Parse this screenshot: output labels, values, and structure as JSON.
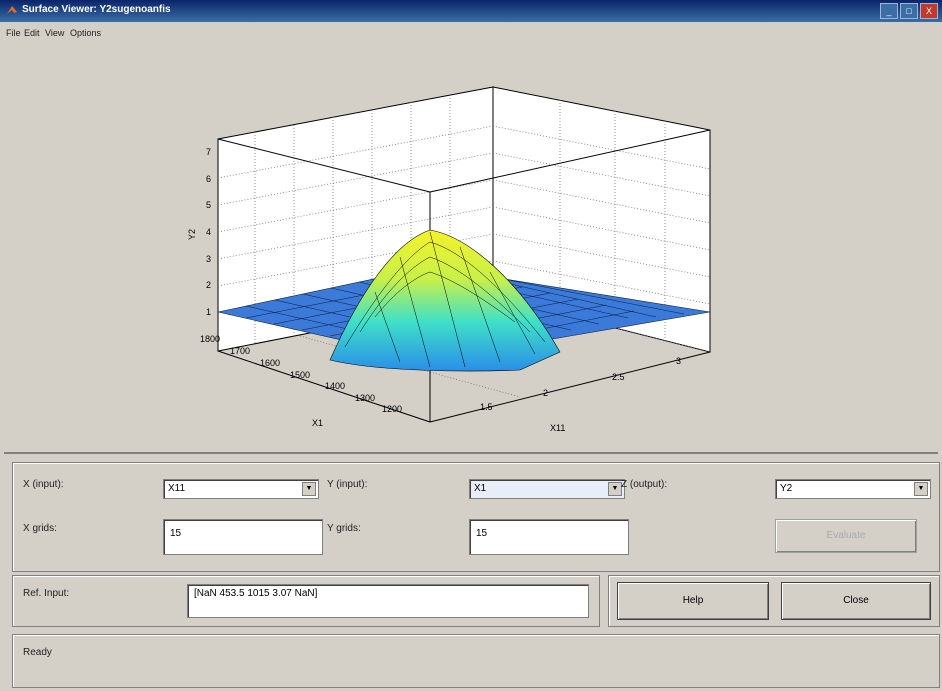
{
  "window": {
    "title": "Surface Viewer: Y2sugenoanfis",
    "controls": [
      "_",
      "□",
      "X"
    ]
  },
  "menu": [
    "File",
    "Edit",
    "View",
    "Options"
  ],
  "plot": {
    "zlabel": "Y2",
    "xlabel": "X1",
    "ylabel": "X11",
    "z_ticks": [
      "1",
      "2",
      "3",
      "4",
      "5",
      "6",
      "7"
    ],
    "x1_ticks": [
      "1200",
      "1300",
      "1400",
      "1500",
      "1600",
      "1700",
      "1800"
    ],
    "x11_ticks": [
      "1.5",
      "2",
      "2.5",
      "3"
    ]
  },
  "controls": {
    "x_input_label": "X (input):",
    "x_input_value": "X11",
    "y_input_label": "Y (input):",
    "y_input_value": "X1",
    "z_output_label": "Z (output):",
    "z_output_value": "Y2",
    "x_grids_label": "X grids:",
    "x_grids_value": "15",
    "y_grids_label": "Y grids:",
    "y_grids_value": "15",
    "evaluate_label": "Evaluate",
    "ref_input_label": "Ref. Input:",
    "ref_input_value": "[NaN 453.5 1015 3.07 NaN]",
    "help_label": "Help",
    "close_label": "Close",
    "status": "Ready"
  }
}
